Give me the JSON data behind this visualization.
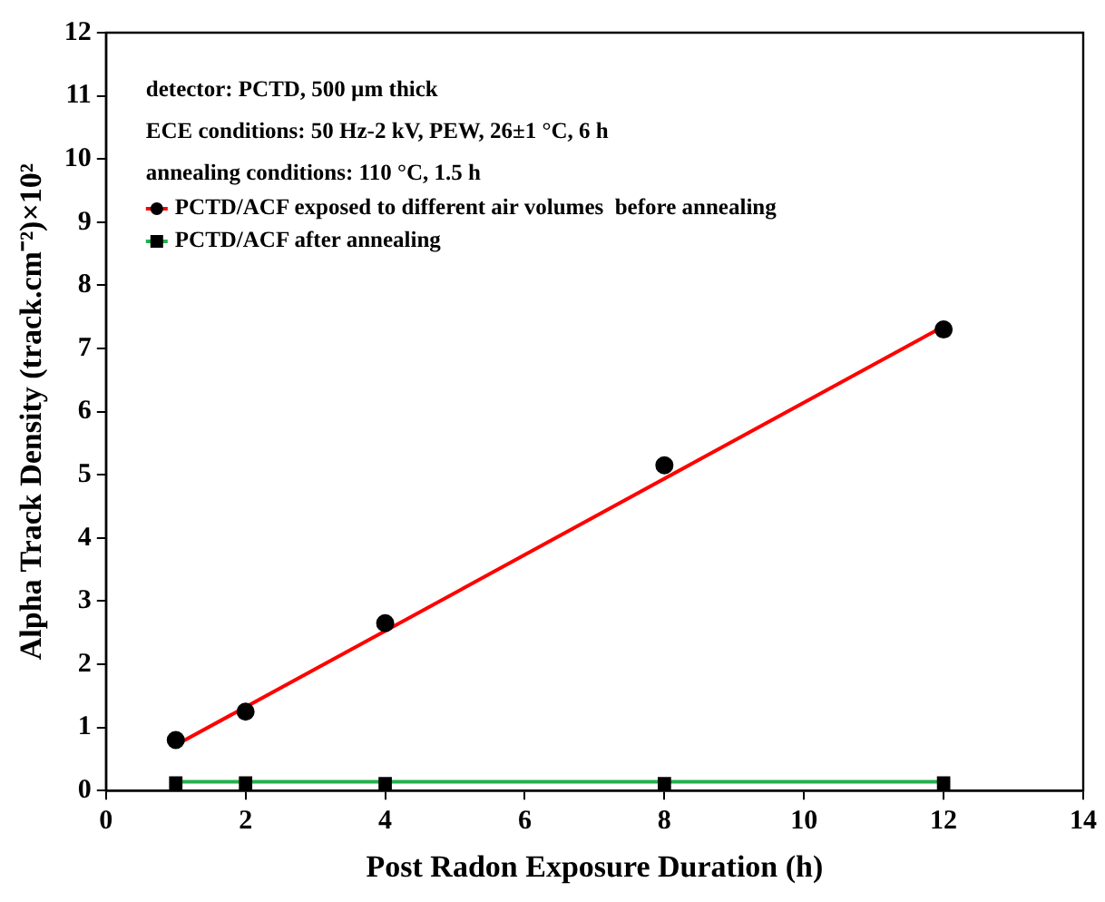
{
  "chart_data": {
    "type": "scatter",
    "xlabel": "Post Radon Exposure Duration (h)",
    "ylabel": "Alpha Track Density (track.cm⁻²)×10²",
    "xlim": [
      0,
      14
    ],
    "xticks": [
      0,
      2,
      4,
      6,
      8,
      10,
      12,
      14
    ],
    "ylim": [
      0,
      12
    ],
    "yticks": [
      0,
      1,
      2,
      3,
      4,
      5,
      6,
      7,
      8,
      9,
      10,
      11,
      12
    ],
    "grid": false,
    "legend": "top left",
    "annotations": [
      "detector: PCTD, 500 µm thick",
      "ECE conditions: 50 Hz-2 kV, PEW, 26±1 °C, 6 h",
      "annealing conditions: 110 °C, 1.5 h"
    ],
    "series": [
      {
        "type": "scatter",
        "name": "PCTD/ACF exposed to different air volumes  before annealing",
        "color": "#000000",
        "marker": "circle",
        "x": [
          1,
          2,
          4,
          8,
          12
        ],
        "values": [
          0.8,
          1.25,
          2.65,
          5.15,
          7.3
        ]
      },
      {
        "type": "scatter",
        "name": "PCTD/ACF after annealing",
        "color": "#000000",
        "marker": "square",
        "x": [
          1,
          2,
          4,
          8,
          12
        ],
        "values": [
          0.12,
          0.12,
          0.11,
          0.11,
          0.12
        ]
      },
      {
        "type": "line",
        "color": "#ff0000",
        "marker": "none",
        "x": [
          1,
          12
        ],
        "values": [
          0.72,
          7.35
        ]
      },
      {
        "type": "line",
        "color": "#22b14c",
        "marker": "none",
        "x": [
          1,
          12
        ],
        "values": [
          0.14,
          0.14
        ]
      }
    ]
  }
}
